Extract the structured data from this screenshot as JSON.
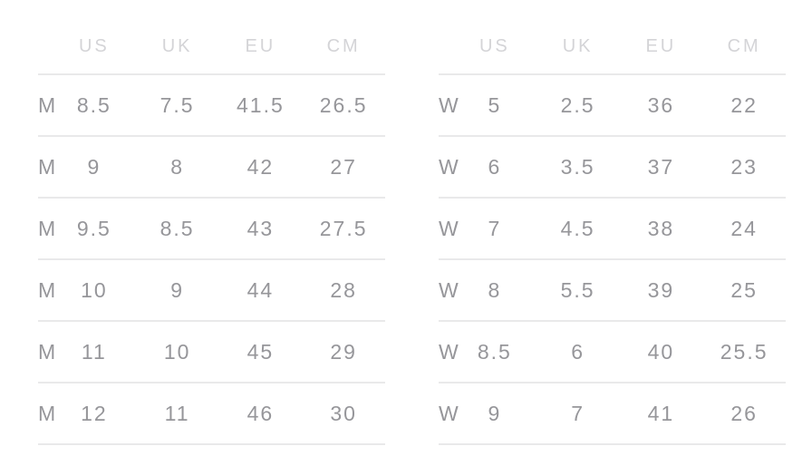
{
  "page": {
    "background_color": "#ffffff"
  },
  "size_chart": {
    "columns": [
      "US",
      "UK",
      "EU",
      "CM"
    ],
    "colors": {
      "header_text": "#d4d4d7",
      "cell_text": "#96969a",
      "divider": "#e9e9ea"
    },
    "tables": [
      {
        "id": "mens",
        "rows": [
          {
            "gender": "M",
            "us": "8.5",
            "uk": "7.5",
            "eu": "41.5",
            "cm": "26.5"
          },
          {
            "gender": "M",
            "us": "9",
            "uk": "8",
            "eu": "42",
            "cm": "27"
          },
          {
            "gender": "M",
            "us": "9.5",
            "uk": "8.5",
            "eu": "43",
            "cm": "27.5"
          },
          {
            "gender": "M",
            "us": "10",
            "uk": "9",
            "eu": "44",
            "cm": "28"
          },
          {
            "gender": "M",
            "us": "11",
            "uk": "10",
            "eu": "45",
            "cm": "29"
          },
          {
            "gender": "M",
            "us": "12",
            "uk": "11",
            "eu": "46",
            "cm": "30"
          }
        ]
      },
      {
        "id": "womens",
        "rows": [
          {
            "gender": "W",
            "us": "5",
            "uk": "2.5",
            "eu": "36",
            "cm": "22"
          },
          {
            "gender": "W",
            "us": "6",
            "uk": "3.5",
            "eu": "37",
            "cm": "23"
          },
          {
            "gender": "W",
            "us": "7",
            "uk": "4.5",
            "eu": "38",
            "cm": "24"
          },
          {
            "gender": "W",
            "us": "8",
            "uk": "5.5",
            "eu": "39",
            "cm": "25"
          },
          {
            "gender": "W",
            "us": "8.5",
            "uk": "6",
            "eu": "40",
            "cm": "25.5"
          },
          {
            "gender": "W",
            "us": "9",
            "uk": "7",
            "eu": "41",
            "cm": "26"
          }
        ]
      }
    ]
  }
}
